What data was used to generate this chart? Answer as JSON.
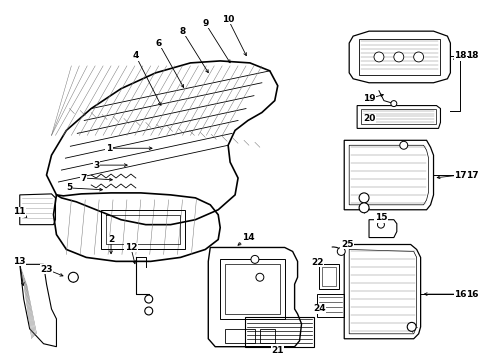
{
  "background_color": "#ffffff",
  "fig_width": 4.89,
  "fig_height": 3.6,
  "dpi": 100,
  "line_color": "#000000",
  "line_width": 0.8
}
